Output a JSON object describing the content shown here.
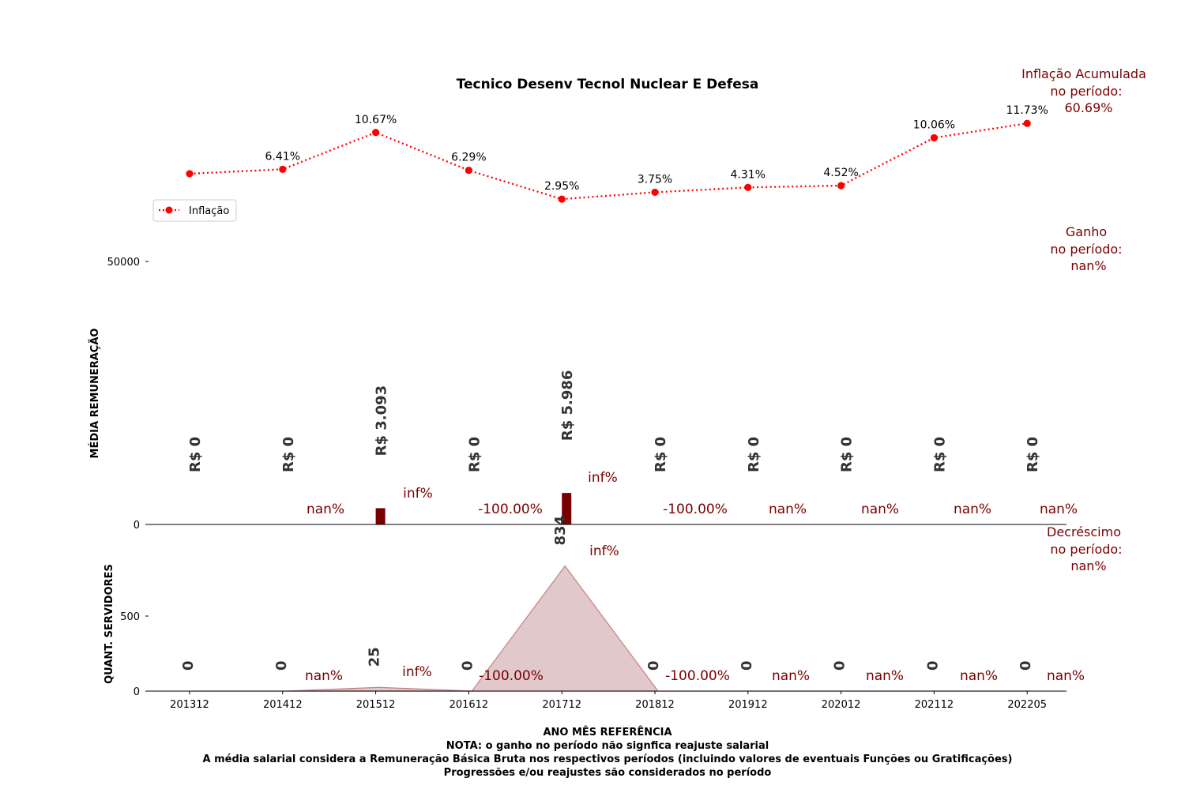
{
  "chart_data": {
    "title": "Tecnico Desenv Tecnol Nuclear E Defesa",
    "categories": [
      "201312",
      "201412",
      "201512",
      "201612",
      "201712",
      "201812",
      "201912",
      "202012",
      "202112",
      "202205"
    ],
    "inflation": {
      "type": "line",
      "name": "Inflação",
      "values": [
        null,
        6.41,
        10.67,
        6.29,
        2.95,
        3.75,
        4.31,
        4.52,
        10.06,
        11.73
      ],
      "labels": [
        "",
        "6.41%",
        "10.67%",
        "6.29%",
        "2.95%",
        "3.75%",
        "4.31%",
        "4.52%",
        "10.06%",
        "11.73%"
      ],
      "legend_position": "left",
      "color": "#ff0000"
    },
    "remuneration": {
      "type": "bar",
      "ylabel": "MÉDIA REMUNERAÇÃO",
      "ylim": [
        0,
        50000
      ],
      "yticks": [
        "0",
        "50000"
      ],
      "values": [
        0,
        0,
        3093,
        0,
        5986,
        0,
        0,
        0,
        0,
        0
      ],
      "value_labels": [
        "R$ 0",
        "R$ 0",
        "R$ 3.093",
        "R$ 0",
        "R$ 5.986",
        "R$ 0",
        "R$ 0",
        "R$ 0",
        "R$ 0",
        "R$ 0"
      ],
      "pct_labels": [
        "nan%",
        "inf%",
        "-100.00%",
        "inf%",
        "-100.00%",
        "nan%",
        "nan%",
        "nan%",
        "nan%"
      ],
      "color": "#7a0000"
    },
    "servers": {
      "type": "area",
      "ylabel": "QUANT. SERVIDORES",
      "ylim": [
        0,
        1000
      ],
      "yticks": [
        "0",
        "500"
      ],
      "values": [
        0,
        0,
        25,
        0,
        834,
        0,
        0,
        0,
        0,
        0
      ],
      "value_labels": [
        "0",
        "0",
        "25",
        "0",
        "834",
        "0",
        "0",
        "0",
        "0",
        "0"
      ],
      "pct_labels": [
        "nan%",
        "inf%",
        "-100.00%",
        "inf%",
        "-100.00%",
        "nan%",
        "nan%",
        "nan%",
        "nan%"
      ],
      "color": "#c89a9e"
    },
    "side_notes": {
      "inflation": [
        "Inflação Acumulada",
        "no período:",
        "60.69%"
      ],
      "gain": [
        "Ganho",
        "no período:",
        "nan%"
      ],
      "decrease": [
        "Decréscimo",
        "no período:",
        "nan%"
      ]
    },
    "xlabel": "ANO MÊS REFERÊNCIA",
    "footnotes": [
      "NOTA: o ganho no período não signfica reajuste salarial",
      "A média salarial considera a Remuneração Básica Bruta nos respectivos períodos (incluindo valores de eventuais Funções ou Gratificações)",
      "Progressões e/ou reajustes são considerados no período"
    ]
  }
}
